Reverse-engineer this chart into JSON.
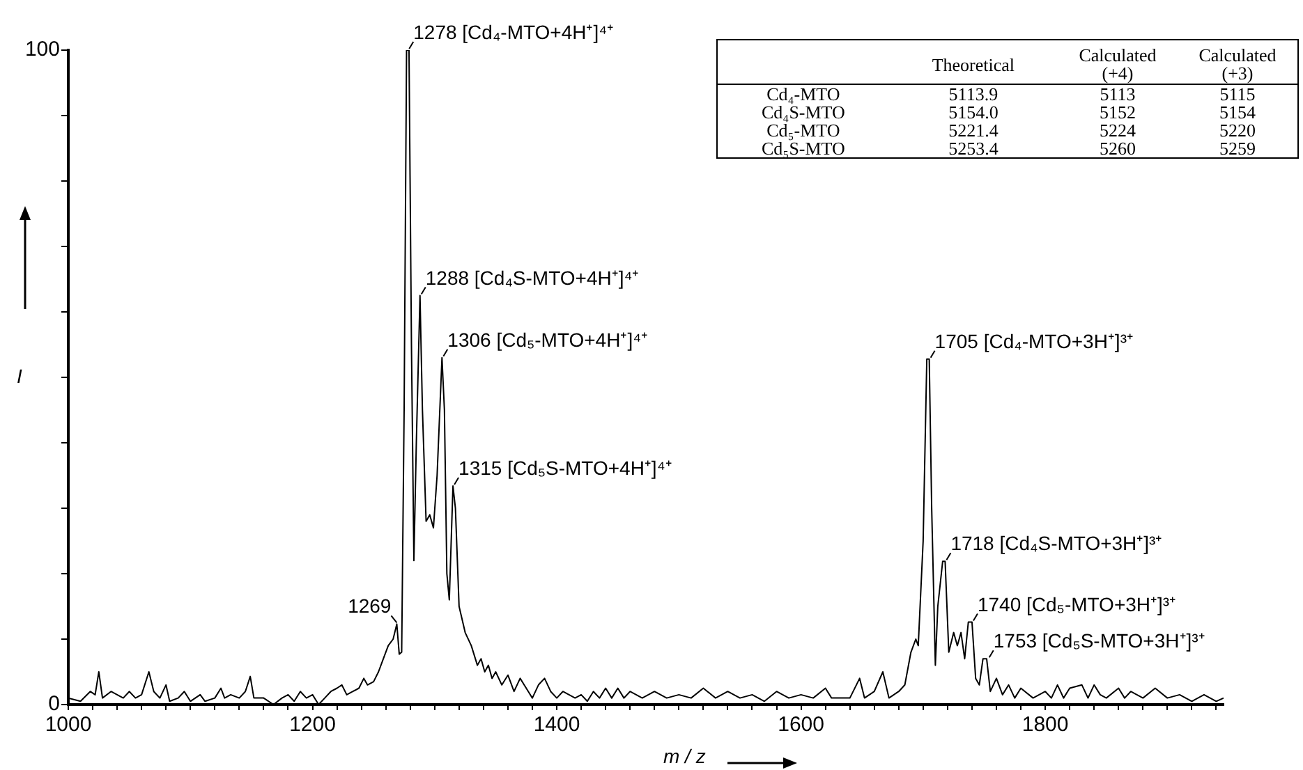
{
  "chart_data": {
    "type": "line",
    "xlabel": "m / z",
    "ylabel": "I",
    "x": [
      1000,
      1010,
      1018,
      1022,
      1025,
      1028,
      1035,
      1040,
      1045,
      1050,
      1055,
      1060,
      1066,
      1070,
      1075,
      1080,
      1083,
      1090,
      1095,
      1100,
      1108,
      1112,
      1120,
      1125,
      1128,
      1133,
      1140,
      1145,
      1149,
      1152,
      1160,
      1168,
      1175,
      1180,
      1185,
      1190,
      1195,
      1200,
      1205,
      1210,
      1215,
      1220,
      1224,
      1228,
      1233,
      1238,
      1242,
      1245,
      1250,
      1254,
      1258,
      1262,
      1266,
      1269,
      1271,
      1273,
      1275,
      1277,
      1279,
      1281,
      1283,
      1285,
      1288,
      1290,
      1293,
      1296,
      1299,
      1302,
      1306,
      1308,
      1310,
      1312,
      1315,
      1317,
      1320,
      1325,
      1330,
      1335,
      1338,
      1341,
      1344,
      1347,
      1350,
      1355,
      1360,
      1365,
      1370,
      1375,
      1380,
      1385,
      1390,
      1395,
      1400,
      1405,
      1410,
      1415,
      1420,
      1425,
      1430,
      1435,
      1440,
      1445,
      1450,
      1455,
      1460,
      1470,
      1480,
      1490,
      1500,
      1510,
      1520,
      1530,
      1540,
      1550,
      1560,
      1570,
      1580,
      1590,
      1600,
      1610,
      1620,
      1625,
      1640,
      1648,
      1652,
      1660,
      1667,
      1672,
      1680,
      1685,
      1690,
      1694,
      1696,
      1700,
      1703,
      1705,
      1707,
      1710,
      1712,
      1716,
      1718,
      1721,
      1725,
      1728,
      1731,
      1734,
      1737,
      1740,
      1743,
      1746,
      1749,
      1752,
      1755,
      1760,
      1765,
      1770,
      1775,
      1780,
      1790,
      1800,
      1805,
      1810,
      1815,
      1820,
      1830,
      1835,
      1840,
      1845,
      1850,
      1860,
      1865,
      1870,
      1880,
      1890,
      1900,
      1910,
      1920,
      1930,
      1940,
      1946
    ],
    "series": [
      {
        "color": "#000000",
        "values": [
          1,
          0.5,
          2,
          1.5,
          5,
          1,
          2,
          1.5,
          1,
          2,
          1,
          1.5,
          5,
          2,
          1,
          3,
          0.5,
          1,
          2,
          0.5,
          1.5,
          0.5,
          1,
          2.5,
          1,
          1.5,
          1,
          2,
          4.3,
          1,
          1,
          0,
          1,
          1.5,
          0.5,
          2,
          1,
          1.5,
          0,
          1,
          2,
          2.5,
          3,
          1.5,
          2,
          2.5,
          4,
          3,
          3.5,
          5,
          7,
          9,
          10,
          12.3,
          7.7,
          8,
          45,
          100,
          100,
          55,
          22,
          40,
          62.5,
          45,
          28,
          29,
          27,
          35,
          53,
          45,
          20,
          16,
          33.4,
          30,
          15,
          11,
          9,
          6,
          7,
          5,
          6,
          4,
          5,
          3,
          4.5,
          2,
          4,
          2.5,
          1,
          3,
          4,
          2,
          1,
          2,
          1.5,
          1,
          1.5,
          0.5,
          2,
          1,
          2.5,
          1,
          2.5,
          1,
          2,
          1,
          2,
          1,
          1.5,
          1,
          2.5,
          1,
          2,
          1,
          1.5,
          0.5,
          2,
          1,
          1.5,
          1,
          2.5,
          1,
          1,
          4,
          1,
          2,
          5,
          1,
          2,
          3,
          8,
          10,
          9,
          25,
          52.8,
          52.8,
          30,
          6,
          15,
          21.9,
          21.9,
          8,
          11,
          9,
          11,
          7,
          12.6,
          12.6,
          4,
          3,
          7,
          7,
          2,
          4,
          1.5,
          3,
          1,
          2.5,
          1,
          2,
          1,
          3,
          1,
          2.5,
          3,
          1,
          3,
          1.5,
          1,
          2.5,
          1,
          2,
          1,
          2.5,
          1,
          1.5,
          0.5,
          1.5,
          0.5,
          1
        ]
      }
    ],
    "xlim": [
      1000,
      1946
    ],
    "xticks": [
      1000,
      {
        "value": 1020,
        "label": null
      },
      {
        "value": 1040,
        "label": null
      },
      {
        "value": 1060,
        "label": null
      },
      {
        "value": 1080,
        "label": null
      },
      {
        "value": 1100,
        "label": null
      },
      {
        "value": 1120,
        "label": null
      },
      {
        "value": 1140,
        "label": null
      },
      {
        "value": 1160,
        "label": null
      },
      {
        "value": 1180,
        "label": null
      },
      1200,
      {
        "value": 1220,
        "label": null
      },
      {
        "value": 1240,
        "label": null
      },
      {
        "value": 1260,
        "label": null
      },
      {
        "value": 1280,
        "label": null
      },
      {
        "value": 1300,
        "label": null
      },
      {
        "value": 1320,
        "label": null
      },
      {
        "value": 1340,
        "label": null
      },
      {
        "value": 1360,
        "label": null
      },
      {
        "value": 1380,
        "label": null
      },
      1400,
      {
        "value": 1420,
        "label": null
      },
      {
        "value": 1440,
        "label": null
      },
      {
        "value": 1460,
        "label": null
      },
      {
        "value": 1480,
        "label": null
      },
      {
        "value": 1500,
        "label": null
      },
      {
        "value": 1520,
        "label": null
      },
      {
        "value": 1540,
        "label": null
      },
      {
        "value": 1560,
        "label": null
      },
      {
        "value": 1580,
        "label": null
      },
      1600,
      {
        "value": 1620,
        "label": null
      },
      {
        "value": 1640,
        "label": null
      },
      {
        "value": 1660,
        "label": null
      },
      {
        "value": 1680,
        "label": null
      },
      {
        "value": 1700,
        "label": null
      },
      {
        "value": 1720,
        "label": null
      },
      {
        "value": 1740,
        "label": null
      },
      {
        "value": 1760,
        "label": null
      },
      {
        "value": 1780,
        "label": null
      },
      1800,
      {
        "value": 1820,
        "label": null
      },
      {
        "value": 1840,
        "label": null
      },
      {
        "value": 1860,
        "label": null
      },
      {
        "value": 1880,
        "label": null
      },
      {
        "value": 1900,
        "label": null
      },
      {
        "value": 1920,
        "label": null
      },
      {
        "value": 1940,
        "label": null
      }
    ],
    "ylim": [
      0,
      100
    ],
    "yticks": [
      0,
      {
        "value": 10,
        "label": null
      },
      {
        "value": 20,
        "label": null
      },
      {
        "value": 30,
        "label": null
      },
      {
        "value": 40,
        "label": null
      },
      {
        "value": 50,
        "label": null
      },
      {
        "value": 60,
        "label": null
      },
      {
        "value": 70,
        "label": null
      },
      {
        "value": 80,
        "label": null
      },
      {
        "value": 90,
        "label": null
      },
      100
    ],
    "annotations": [
      {
        "text": "1269",
        "x": 1269,
        "y": 12.3
      },
      {
        "text": "1278 [Cd₄-MTO+4H⁺]⁴⁺",
        "x": 1278,
        "y": 100
      },
      {
        "text": "1288 [Cd₄S-MTO+4H⁺]⁴⁺",
        "x": 1288,
        "y": 62.5
      },
      {
        "text": "1306 [Cd₅-MTO+4H⁺]⁴⁺",
        "x": 1306,
        "y": 53
      },
      {
        "text": "1315 [Cd₅S-MTO+4H⁺]⁴⁺",
        "x": 1315,
        "y": 33.4
      },
      {
        "text": "1705 [Cd₄-MTO+3H⁺]³⁺",
        "x": 1705,
        "y": 52.8
      },
      {
        "text": "1718 [Cd₄S-MTO+3H⁺]³⁺",
        "x": 1718,
        "y": 21.9
      },
      {
        "text": "1740 [Cd₅-MTO+3H⁺]³⁺",
        "x": 1740,
        "y": 12.6
      },
      {
        "text": "1753 [Cd₅S-MTO+3H⁺]³⁺",
        "x": 1753,
        "y": 7
      },
      "\tTheoretical\tCalculated (+4)\tCalculated (+3)",
      "Cd₄-MTO\t5113.9\t5113\t5115",
      "Cd₄S-MTO\t5154.0\t5152\t5154",
      "Cd₅-MTO\t5221.4\t5224\t5220",
      "Cd₅S-MTO\t5253.4\t5260\t5259"
    ]
  }
}
